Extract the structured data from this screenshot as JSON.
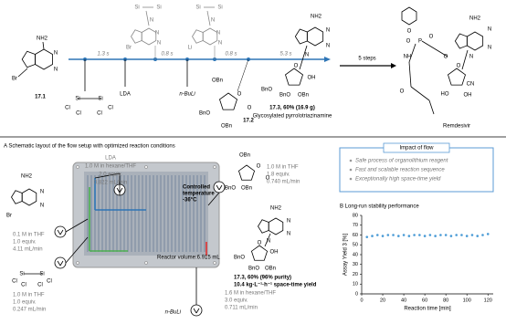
{
  "scheme": {
    "sm_label": "17.1",
    "sm_atoms": [
      "NH2",
      "N",
      "N",
      "Br"
    ],
    "times": [
      "1.3 s",
      "0.8 s",
      "0.8 s",
      "5.3 s"
    ],
    "silyl_atoms": [
      "Si",
      "Si",
      "Cl",
      "Cl",
      "Cl",
      "Cl"
    ],
    "lda": "LDA",
    "nbuli": "n-BuLi",
    "int1_atoms": [
      "Si",
      "Si",
      "N",
      "N",
      "N",
      "Br"
    ],
    "int2_atoms": [
      "Si",
      "Si",
      "N",
      "N",
      "N",
      "Li"
    ],
    "lactone_label": "17.2",
    "lactone_atoms": [
      "OBn",
      "O",
      "O",
      "BnO",
      "OBn"
    ],
    "product_label": "17.3, 60% (16.9 g)",
    "product_name": "Glycosylated pyrrolotriazinamine",
    "product_atoms": [
      "NH2",
      "N",
      "N",
      "N",
      "BnO",
      "O",
      "OH",
      "BnO",
      "OBn"
    ],
    "steps": "5 steps",
    "remdesivir": "Remdesivir",
    "remdesivir_atoms": [
      "O",
      "O",
      "P",
      "NH",
      "O",
      "O",
      "O",
      "NH2",
      "N",
      "N",
      "N",
      "CN",
      "HO",
      "OH",
      "O"
    ]
  },
  "panel_a": {
    "title": "A Schematic layout of the flow setup with optimized reaction conditions",
    "lda": [
      "LDA",
      "1.0 M in hexane/THF",
      "2.0 equiv.",
      "0.822 mL/min"
    ],
    "lactone": [
      "1.0 M in THF",
      "1.8 equiv.",
      "0.740 mL/min"
    ],
    "lactone_atoms": [
      "OBn",
      "O",
      "O",
      "BnO",
      "OBn"
    ],
    "sm": [
      "0.1 M in THF",
      "1.0 equiv.",
      "4.11 mL/min"
    ],
    "sm_atoms": [
      "NH2",
      "N",
      "N",
      "Br"
    ],
    "silyl": [
      "1.0 M in THF",
      "1.0 equiv.",
      "0.247 mL/min"
    ],
    "silyl_atoms": [
      "Si",
      "Si",
      "Cl",
      "Cl",
      "Cl",
      "Cl"
    ],
    "nbuli": [
      "n-BuLi",
      "1.6 M in hexane/THF",
      "3.0 equiv.",
      "0.711 mL/min"
    ],
    "temperature": [
      "Controlled",
      "temperature",
      "-36°C"
    ],
    "reactor_volume": "Reactor volume:6.915 mL",
    "product_atoms": [
      "NH2",
      "N",
      "N",
      "N",
      "BnO",
      "O",
      "OH",
      "BnO",
      "OBn"
    ],
    "product": [
      "17.3, 60% (96% purity)",
      "10.4 kg·L⁻¹·h⁻¹ space-time yield"
    ]
  },
  "impact": {
    "title": "Impact of flow",
    "items": [
      "Safe process of organolithium reagent",
      "Fast and scalable reaction sequence",
      "Exceptionally high space-time yield"
    ]
  },
  "chart_data": {
    "type": "scatter",
    "title": "B Long-run stability performance",
    "x_label": "Reaction time [min]",
    "y_label": "Assay Yield 3 [%]",
    "color": "#4a9bd6",
    "x": [
      5,
      10,
      15,
      20,
      25,
      30,
      35,
      40,
      45,
      50,
      55,
      60,
      65,
      70,
      75,
      80,
      85,
      90,
      95,
      100,
      105,
      110,
      115,
      120
    ],
    "values": [
      58,
      59,
      60,
      59,
      60,
      60,
      59,
      60,
      59,
      60,
      60,
      59,
      60,
      59,
      60,
      60,
      59,
      60,
      60,
      59,
      60,
      59,
      60,
      61
    ],
    "xlim": [
      0,
      125
    ],
    "ylim": [
      0,
      80
    ],
    "xticks": [
      0,
      20,
      40,
      60,
      80,
      100,
      120
    ],
    "yticks": [
      0,
      10,
      20,
      30,
      40,
      50,
      60,
      70,
      80
    ]
  }
}
